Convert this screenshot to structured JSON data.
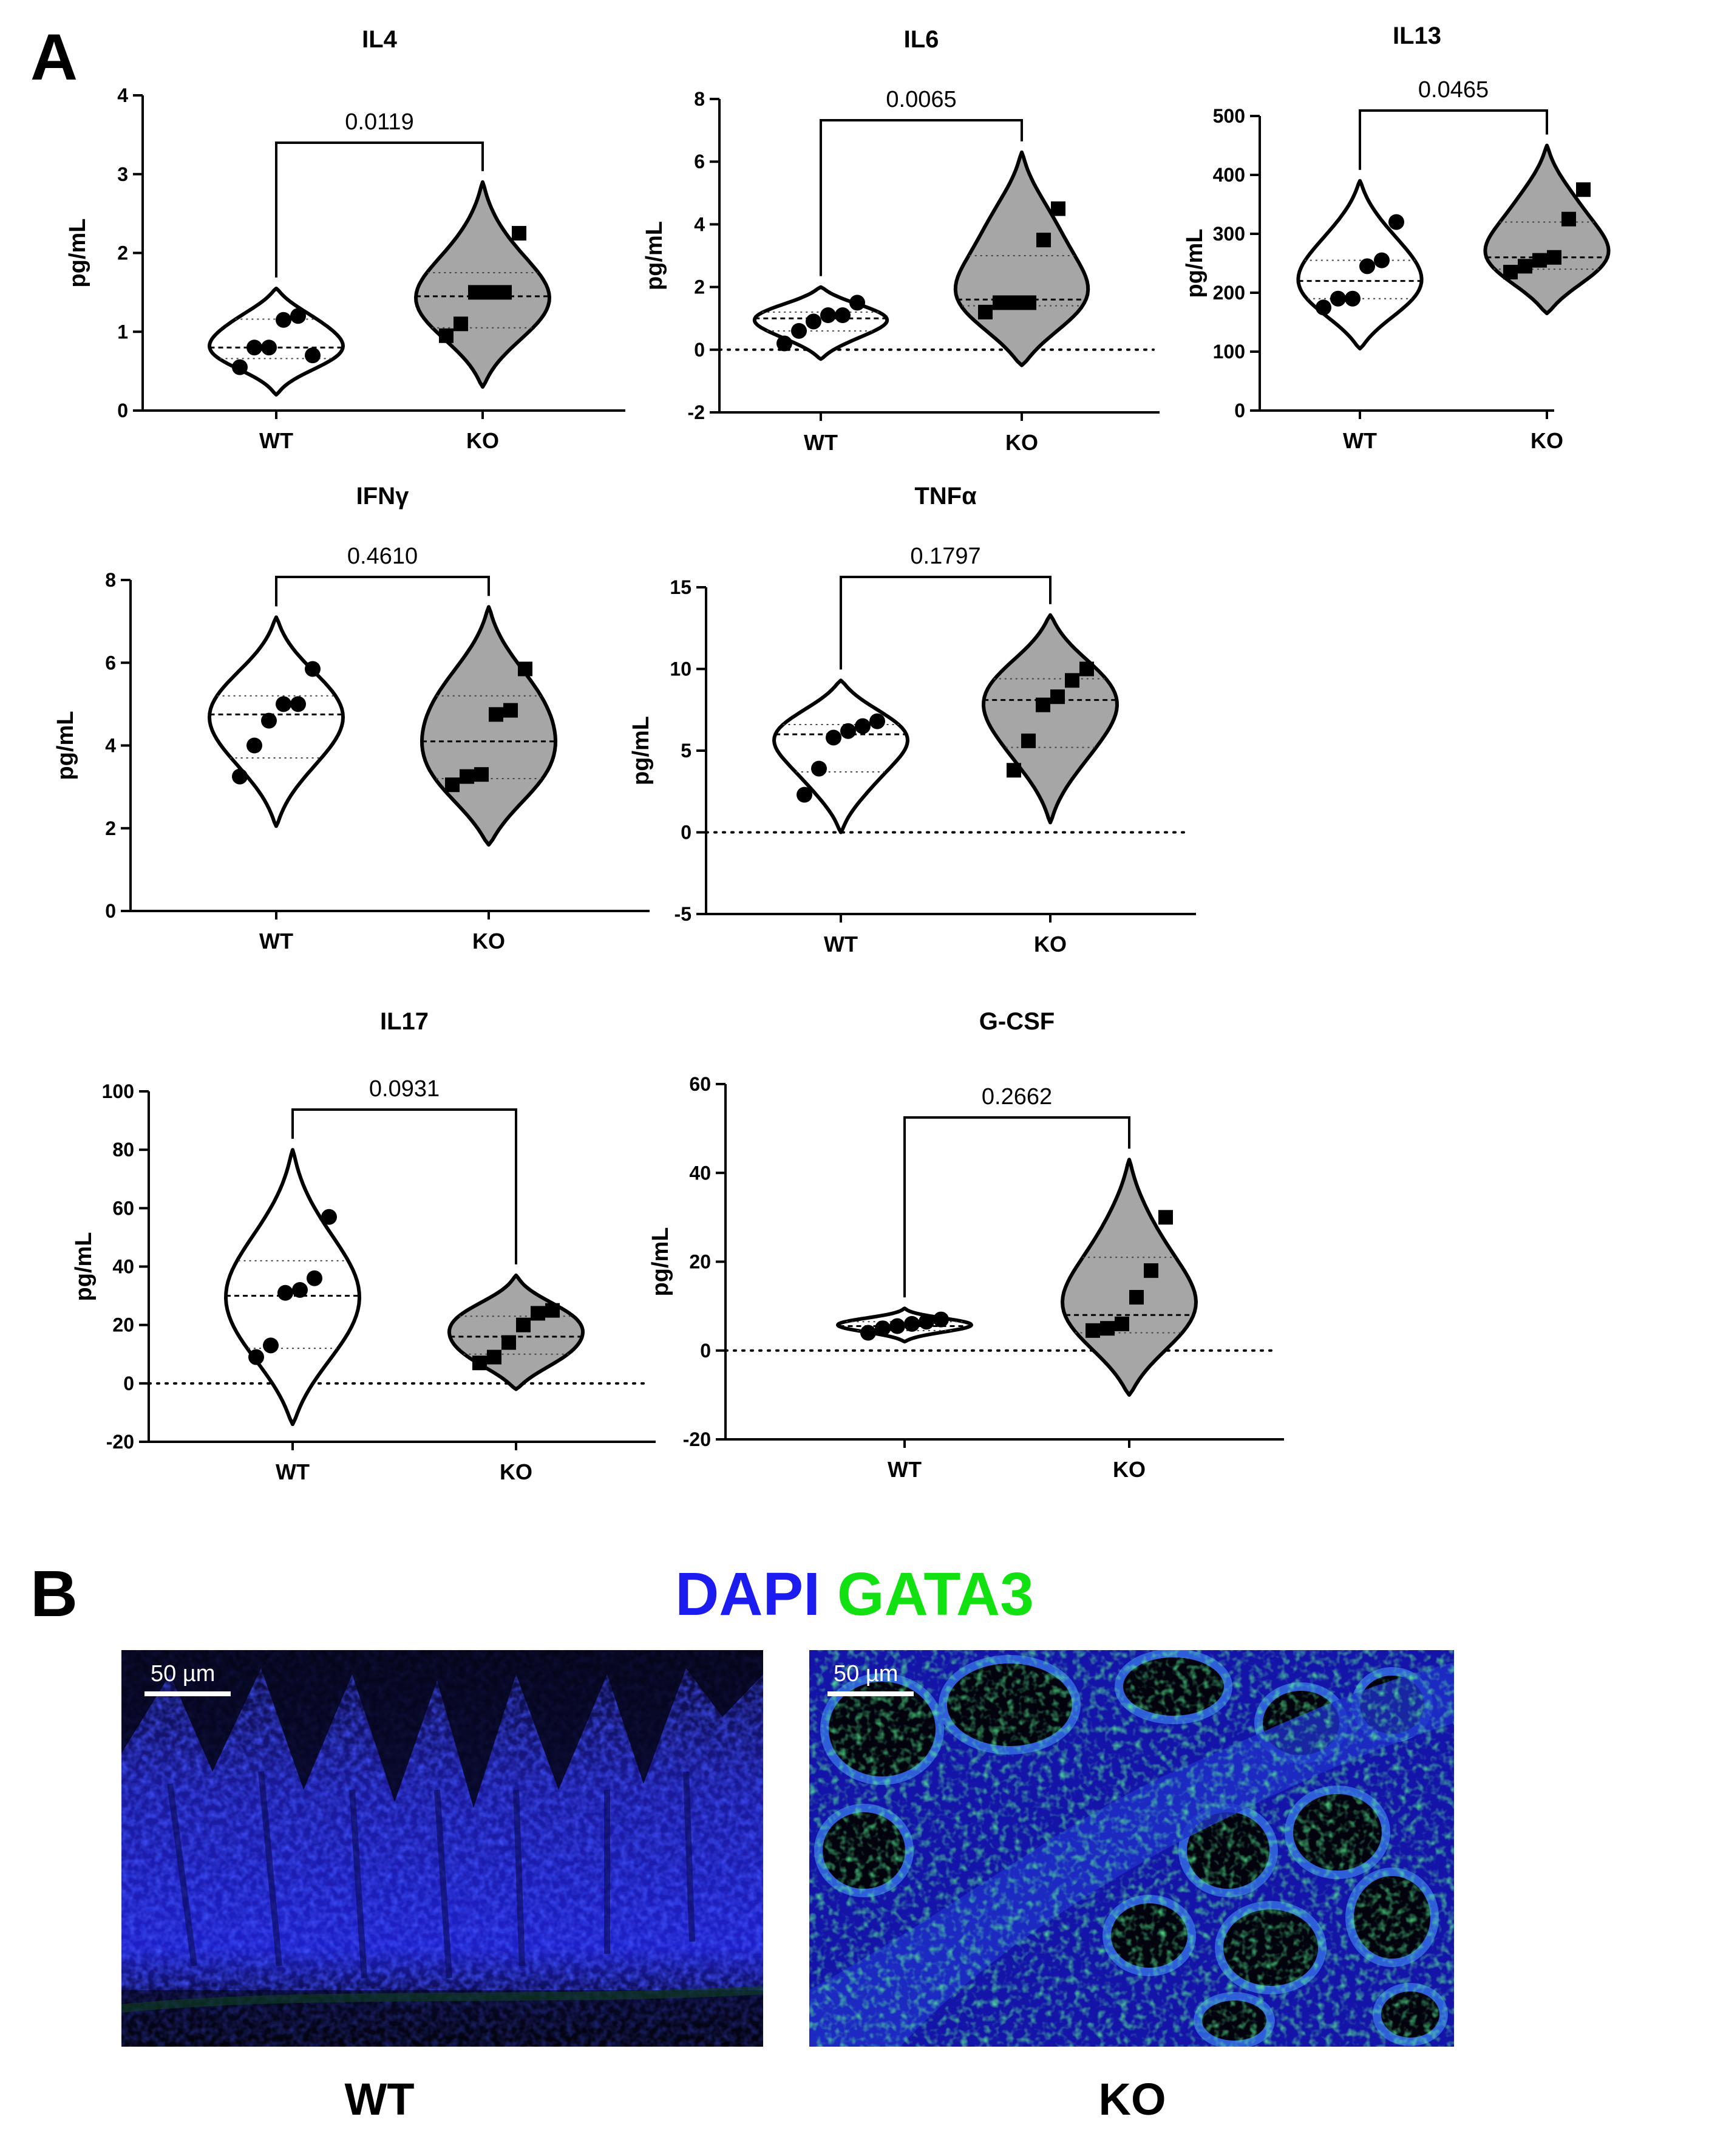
{
  "panel_labels": {
    "a": "A",
    "b": "B"
  },
  "chart_data": [
    {
      "type": "violin",
      "title": "IL4",
      "ylabel": "pg/mL",
      "categories": [
        "WT",
        "KO"
      ],
      "yticks": [
        0,
        1,
        2,
        3,
        4
      ],
      "ylim": [
        0,
        4
      ],
      "pvalue": "0.0119",
      "zero_line": false,
      "groups": [
        {
          "name": "WT",
          "fill": "#ffffff",
          "marker": "circle",
          "values": [
            0.55,
            0.8,
            0.8,
            1.15,
            1.2,
            0.7
          ],
          "violin_range": [
            0.2,
            1.55
          ],
          "median": 0.8,
          "quartiles": [
            0.66,
            1.16
          ]
        },
        {
          "name": "KO",
          "fill": "#a6a6a6",
          "marker": "square",
          "values": [
            0.95,
            1.1,
            1.5,
            1.5,
            1.5,
            2.25
          ],
          "violin_range": [
            0.3,
            2.9
          ],
          "median": 1.45,
          "quartiles": [
            1.05,
            1.75
          ]
        }
      ]
    },
    {
      "type": "violin",
      "title": "IL6",
      "ylabel": "pg/mL",
      "categories": [
        "WT",
        "KO"
      ],
      "yticks": [
        -2,
        0,
        2,
        4,
        6,
        8
      ],
      "ylim": [
        -2,
        8
      ],
      "pvalue": "0.0065",
      "zero_line": true,
      "groups": [
        {
          "name": "WT",
          "fill": "#ffffff",
          "marker": "circle",
          "values": [
            0.2,
            0.6,
            0.9,
            1.1,
            1.1,
            1.5
          ],
          "violin_range": [
            -0.3,
            2.0
          ],
          "median": 1.0,
          "quartiles": [
            0.6,
            1.2
          ]
        },
        {
          "name": "KO",
          "fill": "#a6a6a6",
          "marker": "square",
          "values": [
            1.2,
            1.5,
            1.5,
            1.5,
            3.5,
            4.5
          ],
          "violin_range": [
            -0.5,
            6.3
          ],
          "median": 1.6,
          "quartiles": [
            1.4,
            3.0
          ]
        }
      ]
    },
    {
      "type": "violin",
      "title": "IL13",
      "ylabel": "pg/mL",
      "categories": [
        "WT",
        "KO"
      ],
      "yticks": [
        0,
        100,
        200,
        300,
        400,
        500
      ],
      "ylim": [
        0,
        500
      ],
      "pvalue": "0.0465",
      "zero_line": false,
      "groups": [
        {
          "name": "WT",
          "fill": "#ffffff",
          "marker": "circle",
          "values": [
            175,
            190,
            190,
            245,
            255,
            320
          ],
          "violin_range": [
            105,
            390
          ],
          "median": 220,
          "quartiles": [
            190,
            255
          ]
        },
        {
          "name": "KO",
          "fill": "#a6a6a6",
          "marker": "square",
          "values": [
            235,
            245,
            255,
            260,
            325,
            375
          ],
          "violin_range": [
            165,
            450
          ],
          "median": 260,
          "quartiles": [
            240,
            320
          ]
        }
      ]
    },
    {
      "type": "violin",
      "title": "IFNγ",
      "ylabel": "pg/mL",
      "categories": [
        "WT",
        "KO"
      ],
      "yticks": [
        0,
        2,
        4,
        6,
        8
      ],
      "ylim": [
        0,
        8
      ],
      "pvalue": "0.4610",
      "zero_line": false,
      "groups": [
        {
          "name": "WT",
          "fill": "#ffffff",
          "marker": "circle",
          "values": [
            3.25,
            4.0,
            4.6,
            5.0,
            5.0,
            5.85
          ],
          "violin_range": [
            2.05,
            7.1
          ],
          "median": 4.75,
          "quartiles": [
            3.7,
            5.2
          ]
        },
        {
          "name": "KO",
          "fill": "#a6a6a6",
          "marker": "square",
          "values": [
            3.05,
            3.25,
            3.3,
            4.75,
            4.85,
            5.85
          ],
          "violin_range": [
            1.6,
            7.35
          ],
          "median": 4.1,
          "quartiles": [
            3.2,
            5.2
          ]
        }
      ]
    },
    {
      "type": "violin",
      "title": "TNFα",
      "ylabel": "pg/mL",
      "categories": [
        "WT",
        "KO"
      ],
      "yticks": [
        -5,
        0,
        5,
        10,
        15
      ],
      "ylim": [
        -5,
        15
      ],
      "pvalue": "0.1797",
      "zero_line": true,
      "groups": [
        {
          "name": "WT",
          "fill": "#ffffff",
          "marker": "circle",
          "values": [
            2.3,
            3.9,
            5.8,
            6.2,
            6.5,
            6.8
          ],
          "violin_range": [
            0.0,
            9.3
          ],
          "median": 6.0,
          "quartiles": [
            3.7,
            6.6
          ]
        },
        {
          "name": "KO",
          "fill": "#a6a6a6",
          "marker": "square",
          "values": [
            3.8,
            5.6,
            7.8,
            8.3,
            9.3,
            10.0
          ],
          "violin_range": [
            0.6,
            13.3
          ],
          "median": 8.1,
          "quartiles": [
            5.2,
            9.4
          ]
        }
      ]
    },
    {
      "type": "violin",
      "title": "IL17",
      "ylabel": "pg/mL",
      "categories": [
        "WT",
        "KO"
      ],
      "yticks": [
        -20,
        0,
        20,
        40,
        60,
        80,
        100
      ],
      "ylim": [
        -20,
        100
      ],
      "pvalue": "0.0931",
      "zero_line": true,
      "groups": [
        {
          "name": "WT",
          "fill": "#ffffff",
          "marker": "circle",
          "values": [
            9,
            13,
            31,
            32,
            36,
            57
          ],
          "violin_range": [
            -14,
            80
          ],
          "median": 30,
          "quartiles": [
            12,
            42
          ]
        },
        {
          "name": "KO",
          "fill": "#a6a6a6",
          "marker": "square",
          "values": [
            7,
            9,
            14,
            20,
            24,
            25
          ],
          "violin_range": [
            -2,
            37
          ],
          "median": 16,
          "quartiles": [
            10,
            23
          ]
        }
      ]
    },
    {
      "type": "violin",
      "title": "G-CSF",
      "ylabel": "pg/mL",
      "categories": [
        "WT",
        "KO"
      ],
      "yticks": [
        -20,
        0,
        20,
        40,
        60
      ],
      "ylim": [
        -20,
        60
      ],
      "pvalue": "0.2662",
      "zero_line": true,
      "groups": [
        {
          "name": "WT",
          "fill": "#ffffff",
          "marker": "circle",
          "values": [
            4,
            5,
            5.5,
            6,
            6.5,
            7
          ],
          "violin_range": [
            2,
            9.5
          ],
          "median": 5.5,
          "quartiles": [
            4.5,
            6.5
          ]
        },
        {
          "name": "KO",
          "fill": "#a6a6a6",
          "marker": "square",
          "values": [
            4.5,
            5,
            6,
            12,
            18,
            30
          ],
          "violin_range": [
            -10,
            43
          ],
          "median": 8,
          "quartiles": [
            4,
            21
          ]
        }
      ]
    }
  ],
  "microscopy": {
    "legend": {
      "dapi": "DAPI",
      "gata3": "GATA3",
      "dapi_color": "#1c1cf0",
      "gata3_color": "#11e011"
    },
    "scale_bar": "50 µm",
    "panels": [
      {
        "caption": "WT"
      },
      {
        "caption": "KO"
      }
    ]
  }
}
